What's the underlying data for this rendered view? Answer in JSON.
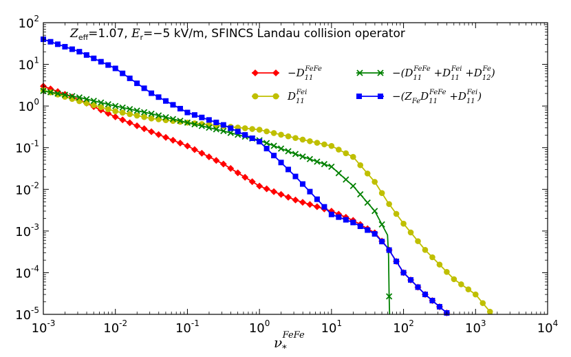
{
  "chart_data": {
    "type": "line",
    "xscale": "log",
    "yscale": "log",
    "xlim": [
      0.001,
      10000
    ],
    "ylim": [
      1e-05,
      100
    ],
    "title": "Z_eff=1.07, E_r=-5 kV/m, SFINCS Landau collision operator",
    "title_parts": {
      "z": "Z",
      "zsub": "eff",
      "zval": "=1.07, ",
      "e": "E",
      "esub": "r",
      "eval": "=−5 kV/m, SFINCS Landau collision operator"
    },
    "xlabel": "ν_*^FeFe",
    "xlabel_parts": {
      "base": "ν",
      "sub": "*",
      "sup": "FeFe"
    },
    "ylabel": "",
    "x_ticks": [
      {
        "base": "10",
        "exp": "-3"
      },
      {
        "base": "10",
        "exp": "-2"
      },
      {
        "base": "10",
        "exp": "-1"
      },
      {
        "base": "10",
        "exp": "0"
      },
      {
        "base": "10",
        "exp": "1"
      },
      {
        "base": "10",
        "exp": "2"
      },
      {
        "base": "10",
        "exp": "3"
      },
      {
        "base": "10",
        "exp": "4"
      }
    ],
    "y_ticks": [
      {
        "base": "10",
        "exp": "-5"
      },
      {
        "base": "10",
        "exp": "-4"
      },
      {
        "base": "10",
        "exp": "-3"
      },
      {
        "base": "10",
        "exp": "-2"
      },
      {
        "base": "10",
        "exp": "-1"
      },
      {
        "base": "10",
        "exp": "0"
      },
      {
        "base": "10",
        "exp": "1"
      },
      {
        "base": "10",
        "exp": "2"
      }
    ],
    "legend_position": "upper-right",
    "series": [
      {
        "name": "−D_11^FeFe",
        "label_parts": {
          "pre": "−",
          "base": "D",
          "sub": "11",
          "sup": "FeFe"
        },
        "color": "#ff0000",
        "marker": "diamond",
        "x": [
          0.001,
          0.0032,
          0.01,
          0.032,
          0.1,
          0.32,
          1,
          3.2,
          10,
          20,
          40,
          60,
          100,
          200,
          420
        ],
        "y": [
          3.0,
          1.4,
          0.55,
          0.24,
          0.11,
          0.04,
          0.012,
          0.0055,
          0.003,
          0.0018,
          0.0009,
          0.0004,
          0.0001,
          3e-05,
          1e-05
        ]
      },
      {
        "name": "D_11^Fei",
        "label_parts": {
          "pre": "",
          "base": "D",
          "sub": "11",
          "sup": "Fei"
        },
        "color": "#bfbf00",
        "marker": "circle",
        "x": [
          0.001,
          0.0032,
          0.01,
          0.032,
          0.1,
          0.32,
          1,
          3.2,
          10,
          20,
          40,
          60,
          100,
          200,
          500,
          1000,
          1700
        ],
        "y": [
          2.4,
          1.3,
          0.75,
          0.5,
          0.4,
          0.33,
          0.27,
          0.17,
          0.11,
          0.06,
          0.015,
          0.005,
          0.0015,
          0.00035,
          7e-05,
          3e-05,
          1e-05
        ]
      },
      {
        "name": "−(D_11^FeFe + D_11^Fei + D_12^Fe)",
        "label_parts": {
          "pre": "−(",
          "base": "D",
          "sub": "11",
          "sup": "FeFe",
          "p2": " +",
          "base2": "D",
          "sub2": "11",
          "sup2": "Fei",
          "p3": " +",
          "base3": "D",
          "sub3": "12",
          "sup3": "Fe",
          "post": ")"
        },
        "color": "#008000",
        "marker": "x",
        "x": [
          0.001,
          0.0032,
          0.01,
          0.032,
          0.1,
          0.32,
          1,
          3.2,
          10,
          20,
          40,
          60,
          62,
          63,
          64
        ],
        "y": [
          2.3,
          1.6,
          1.0,
          0.65,
          0.4,
          0.25,
          0.15,
          0.07,
          0.035,
          0.012,
          0.003,
          0.0008,
          0.00025,
          3e-05,
          1e-05
        ]
      },
      {
        "name": "−(Z_Fe D_11^FeFe + D_11^Fei)",
        "label_parts": {
          "pre": "−(",
          "z": "Z",
          "zsub": "Fe",
          "base": "D",
          "sub": "11",
          "sup": "FeFe",
          "p2": " +",
          "base2": "D",
          "sub2": "11",
          "sup2": "Fei",
          "post": ")"
        },
        "color": "#0000ff",
        "marker": "square",
        "x": [
          0.001,
          0.0032,
          0.01,
          0.032,
          0.1,
          0.32,
          1,
          3.2,
          10,
          20,
          40,
          60,
          100,
          200,
          420
        ],
        "y": [
          40,
          20,
          8.0,
          2.0,
          0.7,
          0.35,
          0.14,
          0.02,
          0.0025,
          0.0016,
          0.00085,
          0.0004,
          0.0001,
          3e-05,
          1e-05
        ]
      }
    ]
  }
}
